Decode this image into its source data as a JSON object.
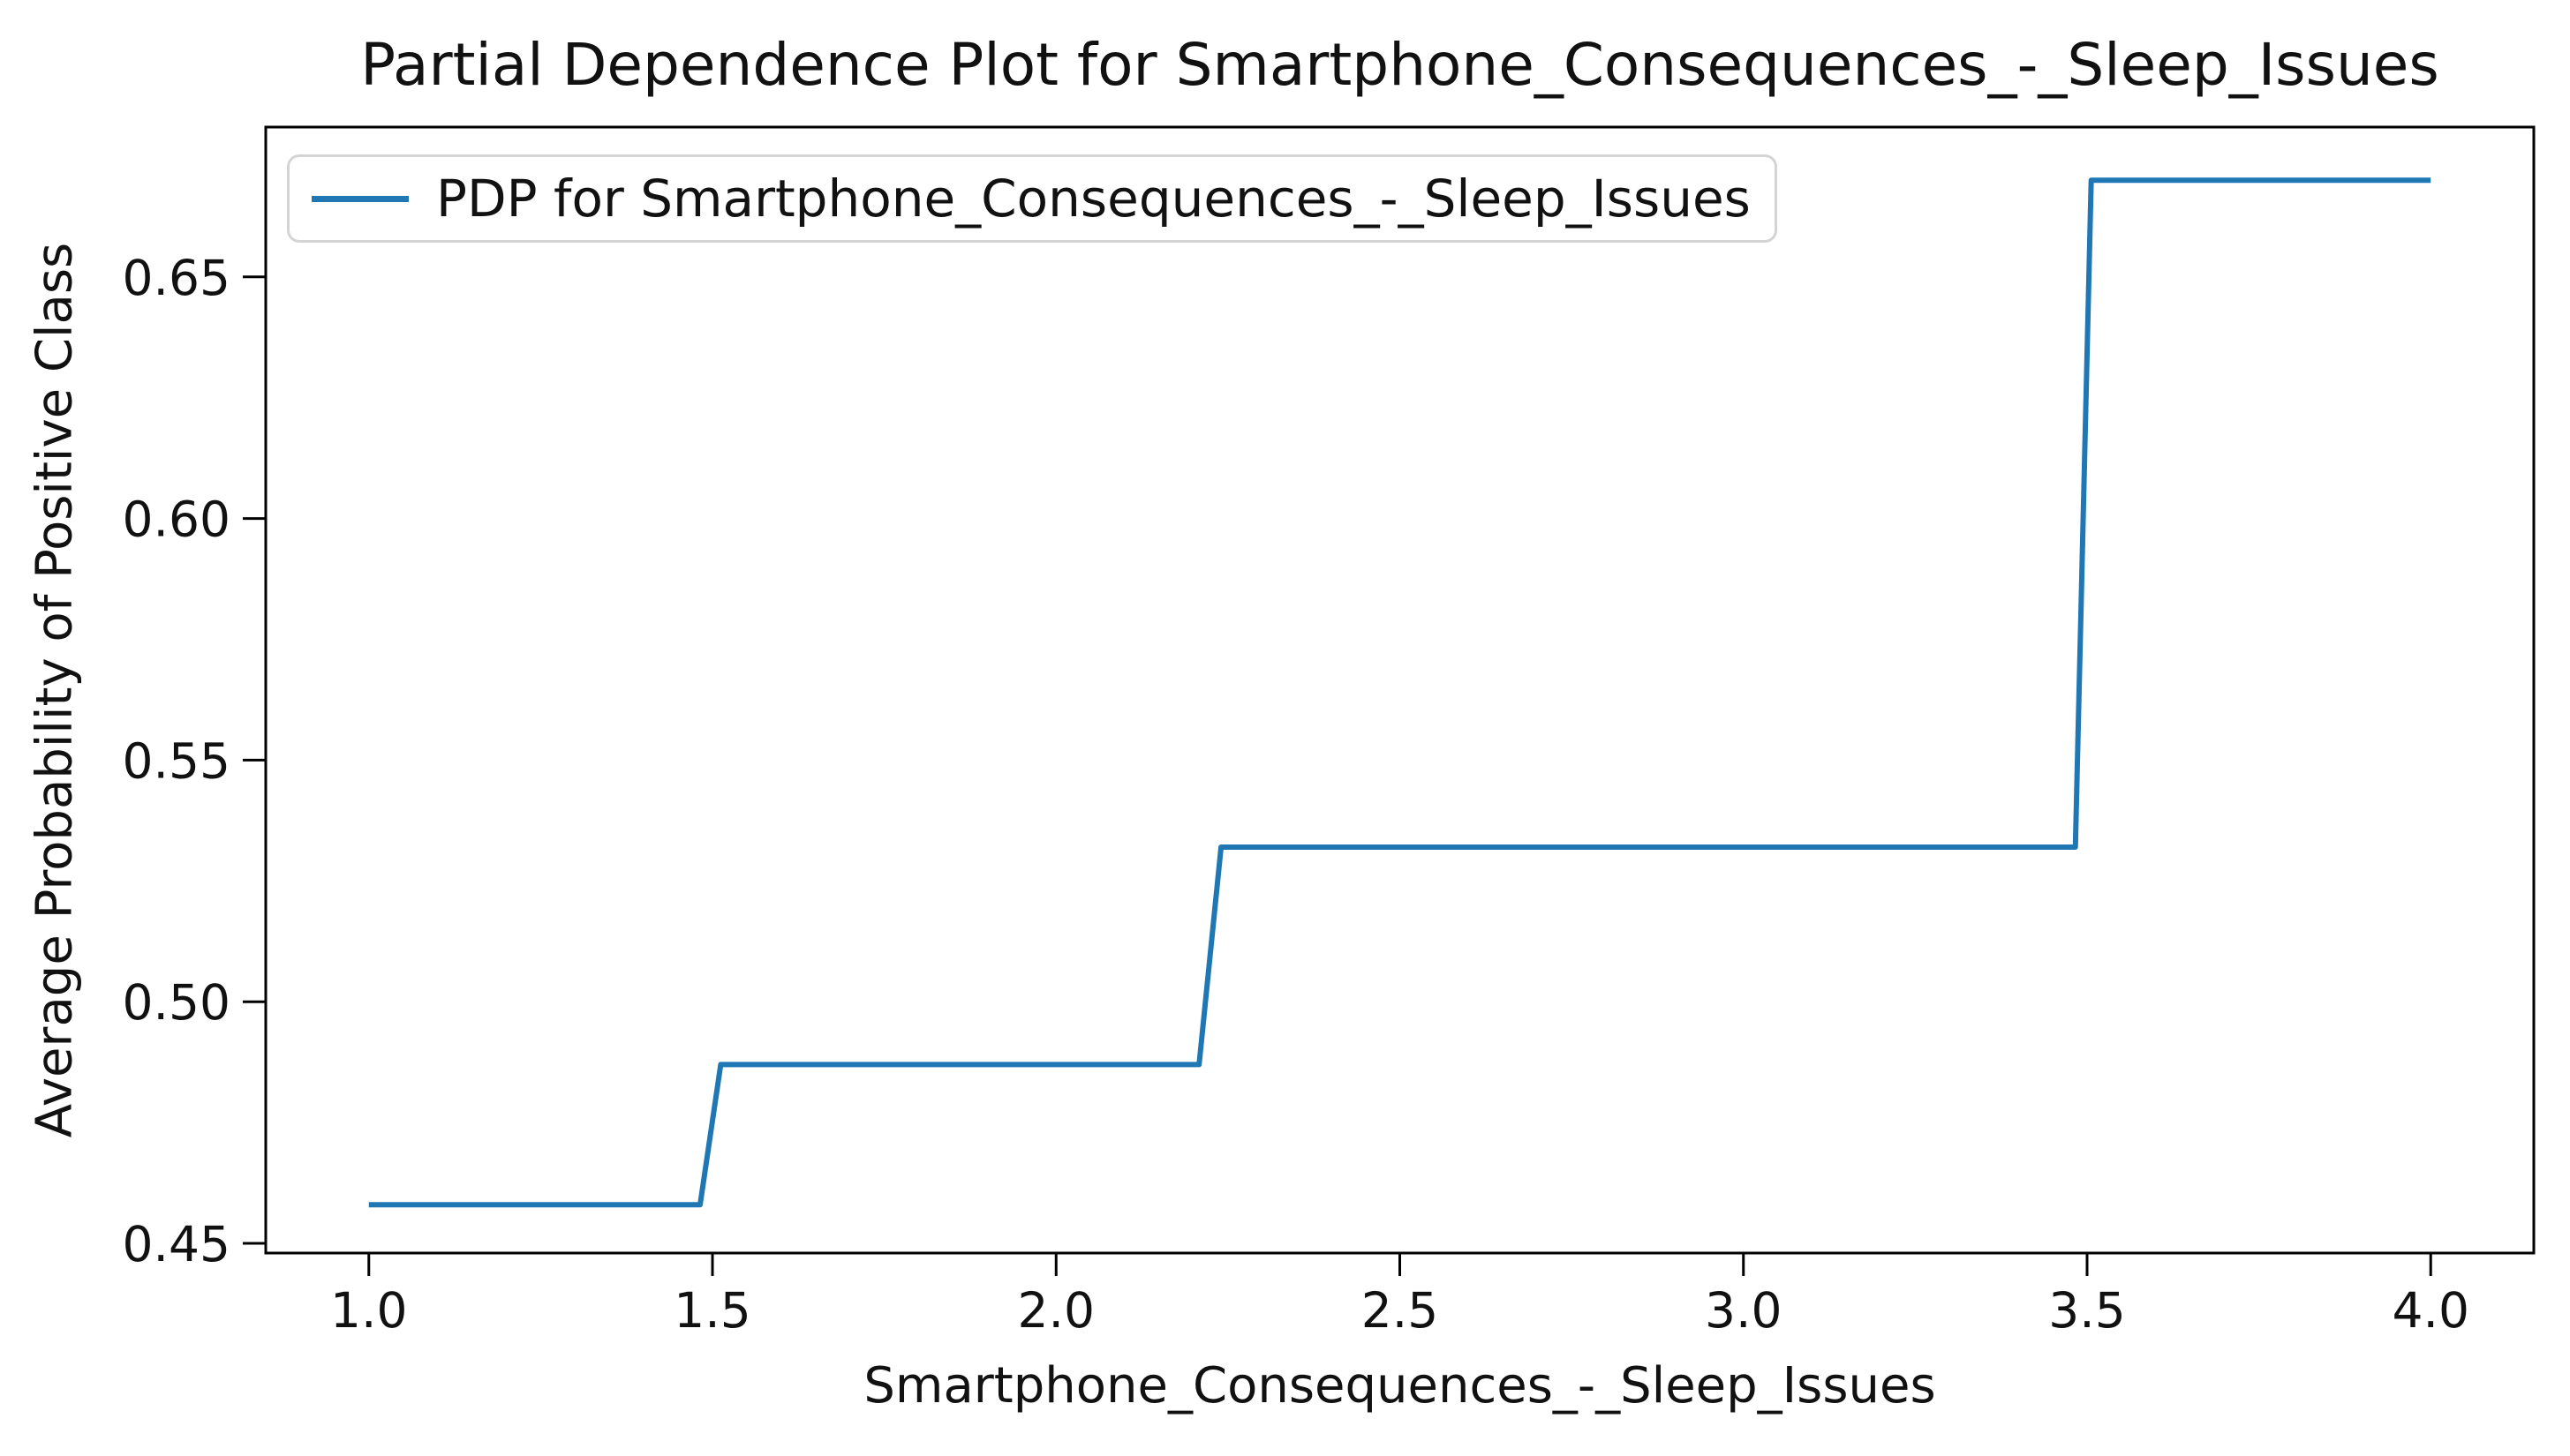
{
  "chart_data": {
    "type": "line",
    "title": "Partial Dependence Plot for Smartphone_Consequences_-_Sleep_Issues",
    "xlabel": "Smartphone_Consequences_-_Sleep_Issues",
    "ylabel": "Average Probability of Positive Class",
    "xlim": [
      0.85,
      4.15
    ],
    "ylim": [
      0.448,
      0.681
    ],
    "xticks": [
      1.0,
      1.5,
      2.0,
      2.5,
      3.0,
      3.5,
      4.0
    ],
    "xtick_labels": [
      "1.0",
      "1.5",
      "2.0",
      "2.5",
      "3.0",
      "3.5",
      "4.0"
    ],
    "yticks": [
      0.45,
      0.5,
      0.55,
      0.6,
      0.65
    ],
    "ytick_labels": [
      "0.45",
      "0.50",
      "0.55",
      "0.60",
      "0.65"
    ],
    "grid": false,
    "legend": {
      "position": "upper left",
      "entries": [
        {
          "label": "PDP for Smartphone_Consequences_-_Sleep_Issues",
          "color": "#1f77b4"
        }
      ]
    },
    "series": [
      {
        "name": "PDP for Smartphone_Consequences_-_Sleep_Issues",
        "color": "#1f77b4",
        "step_values": [
          0.458,
          0.487,
          0.532,
          0.67
        ],
        "points": [
          [
            1.0,
            0.458
          ],
          [
            1.482,
            0.458
          ],
          [
            1.512,
            0.487
          ],
          [
            2.208,
            0.487
          ],
          [
            2.24,
            0.532
          ],
          [
            3.483,
            0.532
          ],
          [
            3.506,
            0.67
          ],
          [
            4.0,
            0.67
          ]
        ]
      }
    ]
  },
  "style": {
    "line_color": "#1f77b4",
    "spine_color": "#000000",
    "text_color": "#111111",
    "legend_border_color": "#d4d4d4",
    "background": "#ffffff"
  }
}
